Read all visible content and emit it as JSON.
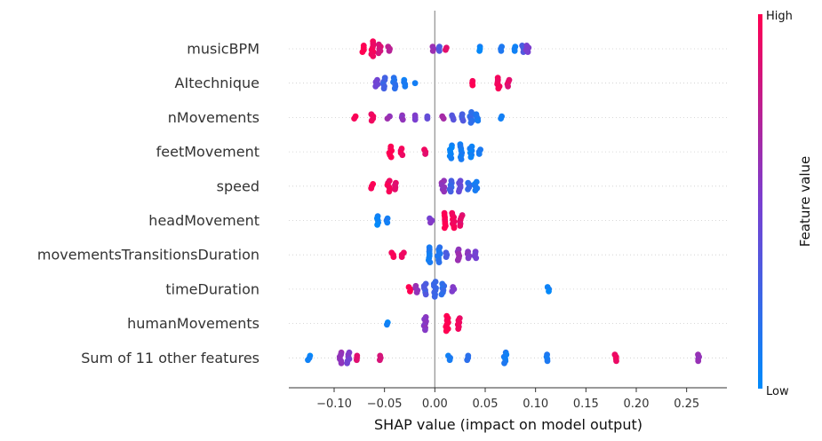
{
  "chart_data": {
    "type": "scatter",
    "subtype": "shap-beeswarm",
    "title": "",
    "xlabel": "SHAP value (impact on model output)",
    "xlim": [
      -0.145,
      0.29
    ],
    "xticks": [
      -0.1,
      -0.05,
      0.0,
      0.05,
      0.1,
      0.15,
      0.2,
      0.25
    ],
    "xtick_labels": [
      "−0.10",
      "−0.05",
      "0.00",
      "0.05",
      "0.10",
      "0.15",
      "0.20",
      "0.25"
    ],
    "zero_line": 0.0,
    "grid": false,
    "colorbar": {
      "title": "Feature value",
      "high_label": "High",
      "low_label": "Low",
      "low_color": "#008bfb",
      "mid_color": "#7a3fd0",
      "high_color": "#ff0052"
    },
    "features": [
      {
        "name": "musicBPM",
        "clusters": [
          {
            "x": -0.071,
            "n": 4,
            "value": 1.0
          },
          {
            "x": -0.062,
            "n": 8,
            "value": 0.95
          },
          {
            "x": -0.055,
            "n": 5,
            "value": 0.85
          },
          {
            "x": -0.046,
            "n": 3,
            "value": 0.75
          },
          {
            "x": -0.002,
            "n": 3,
            "value": 0.6
          },
          {
            "x": 0.004,
            "n": 3,
            "value": 0.35
          },
          {
            "x": 0.011,
            "n": 2,
            "value": 0.9
          },
          {
            "x": 0.045,
            "n": 3,
            "value": 0.05
          },
          {
            "x": 0.066,
            "n": 3,
            "value": 0.15
          },
          {
            "x": 0.079,
            "n": 3,
            "value": 0.05
          },
          {
            "x": 0.088,
            "n": 4,
            "value": 0.3
          },
          {
            "x": 0.092,
            "n": 4,
            "value": 0.5
          }
        ]
      },
      {
        "name": "AItechnique",
        "clusters": [
          {
            "x": -0.058,
            "n": 4,
            "value": 0.45
          },
          {
            "x": -0.05,
            "n": 6,
            "value": 0.25
          },
          {
            "x": -0.04,
            "n": 6,
            "value": 0.15
          },
          {
            "x": -0.03,
            "n": 4,
            "value": 0.1
          },
          {
            "x": -0.02,
            "n": 1,
            "value": 0.05
          },
          {
            "x": 0.037,
            "n": 3,
            "value": 1.0
          },
          {
            "x": 0.063,
            "n": 6,
            "value": 0.95
          },
          {
            "x": 0.073,
            "n": 4,
            "value": 0.9
          }
        ]
      },
      {
        "name": "nMovements",
        "clusters": [
          {
            "x": -0.079,
            "n": 2,
            "value": 1.0
          },
          {
            "x": -0.062,
            "n": 4,
            "value": 0.95
          },
          {
            "x": -0.046,
            "n": 2,
            "value": 0.6
          },
          {
            "x": -0.032,
            "n": 3,
            "value": 0.55
          },
          {
            "x": -0.019,
            "n": 3,
            "value": 0.5
          },
          {
            "x": -0.008,
            "n": 2,
            "value": 0.4
          },
          {
            "x": 0.008,
            "n": 2,
            "value": 0.7
          },
          {
            "x": 0.018,
            "n": 3,
            "value": 0.35
          },
          {
            "x": 0.027,
            "n": 4,
            "value": 0.3
          },
          {
            "x": 0.036,
            "n": 6,
            "value": 0.2
          },
          {
            "x": 0.042,
            "n": 4,
            "value": 0.1
          },
          {
            "x": 0.066,
            "n": 2,
            "value": 0.05
          }
        ]
      },
      {
        "name": "feetMovement",
        "clusters": [
          {
            "x": -0.044,
            "n": 6,
            "value": 1.0
          },
          {
            "x": -0.033,
            "n": 4,
            "value": 0.95
          },
          {
            "x": -0.01,
            "n": 3,
            "value": 0.92
          },
          {
            "x": 0.016,
            "n": 7,
            "value": 0.05
          },
          {
            "x": 0.026,
            "n": 8,
            "value": 0.1
          },
          {
            "x": 0.036,
            "n": 6,
            "value": 0.05
          },
          {
            "x": 0.044,
            "n": 3,
            "value": 0.1
          }
        ]
      },
      {
        "name": "speed",
        "clusters": [
          {
            "x": -0.062,
            "n": 3,
            "value": 1.0
          },
          {
            "x": -0.046,
            "n": 6,
            "value": 0.95
          },
          {
            "x": -0.04,
            "n": 4,
            "value": 0.9
          },
          {
            "x": 0.008,
            "n": 6,
            "value": 0.6
          },
          {
            "x": 0.016,
            "n": 6,
            "value": 0.25
          },
          {
            "x": 0.025,
            "n": 6,
            "value": 0.45
          },
          {
            "x": 0.034,
            "n": 4,
            "value": 0.2
          },
          {
            "x": 0.041,
            "n": 5,
            "value": 0.1
          }
        ]
      },
      {
        "name": "headMovement",
        "clusters": [
          {
            "x": -0.056,
            "n": 5,
            "value": 0.05
          },
          {
            "x": -0.048,
            "n": 3,
            "value": 0.1
          },
          {
            "x": -0.004,
            "n": 3,
            "value": 0.5
          },
          {
            "x": 0.01,
            "n": 8,
            "value": 1.0
          },
          {
            "x": 0.018,
            "n": 8,
            "value": 0.95
          },
          {
            "x": 0.026,
            "n": 6,
            "value": 0.9
          }
        ]
      },
      {
        "name": "movementsTransitionsDuration",
        "clusters": [
          {
            "x": -0.042,
            "n": 3,
            "value": 1.0
          },
          {
            "x": -0.032,
            "n": 3,
            "value": 0.95
          },
          {
            "x": -0.006,
            "n": 8,
            "value": 0.1
          },
          {
            "x": 0.004,
            "n": 8,
            "value": 0.15
          },
          {
            "x": 0.011,
            "n": 3,
            "value": 0.35
          },
          {
            "x": 0.024,
            "n": 6,
            "value": 0.6
          },
          {
            "x": 0.033,
            "n": 4,
            "value": 0.55
          },
          {
            "x": 0.04,
            "n": 4,
            "value": 0.5
          }
        ]
      },
      {
        "name": "timeDuration",
        "clusters": [
          {
            "x": -0.025,
            "n": 3,
            "value": 1.0
          },
          {
            "x": -0.018,
            "n": 4,
            "value": 0.6
          },
          {
            "x": -0.01,
            "n": 6,
            "value": 0.3
          },
          {
            "x": 0.0,
            "n": 8,
            "value": 0.25
          },
          {
            "x": 0.008,
            "n": 6,
            "value": 0.2
          },
          {
            "x": 0.018,
            "n": 3,
            "value": 0.5
          },
          {
            "x": 0.112,
            "n": 3,
            "value": 0.05
          }
        ]
      },
      {
        "name": "humanMovements",
        "clusters": [
          {
            "x": -0.048,
            "n": 2,
            "value": 0.05
          },
          {
            "x": -0.01,
            "n": 7,
            "value": 0.55
          },
          {
            "x": 0.012,
            "n": 8,
            "value": 1.0
          },
          {
            "x": 0.024,
            "n": 6,
            "value": 0.95
          }
        ]
      },
      {
        "name": "Sum of 11 other features",
        "clusters": [
          {
            "x": -0.125,
            "n": 3,
            "value": 0.05
          },
          {
            "x": -0.094,
            "n": 6,
            "value": 0.6
          },
          {
            "x": -0.086,
            "n": 6,
            "value": 0.5
          },
          {
            "x": -0.078,
            "n": 3,
            "value": 0.9
          },
          {
            "x": -0.055,
            "n": 3,
            "value": 0.85
          },
          {
            "x": 0.014,
            "n": 3,
            "value": 0.1
          },
          {
            "x": 0.032,
            "n": 3,
            "value": 0.15
          },
          {
            "x": 0.07,
            "n": 6,
            "value": 0.1
          },
          {
            "x": 0.112,
            "n": 4,
            "value": 0.1
          },
          {
            "x": 0.18,
            "n": 4,
            "value": 0.95
          },
          {
            "x": 0.262,
            "n": 4,
            "value": 0.6
          }
        ]
      }
    ]
  }
}
